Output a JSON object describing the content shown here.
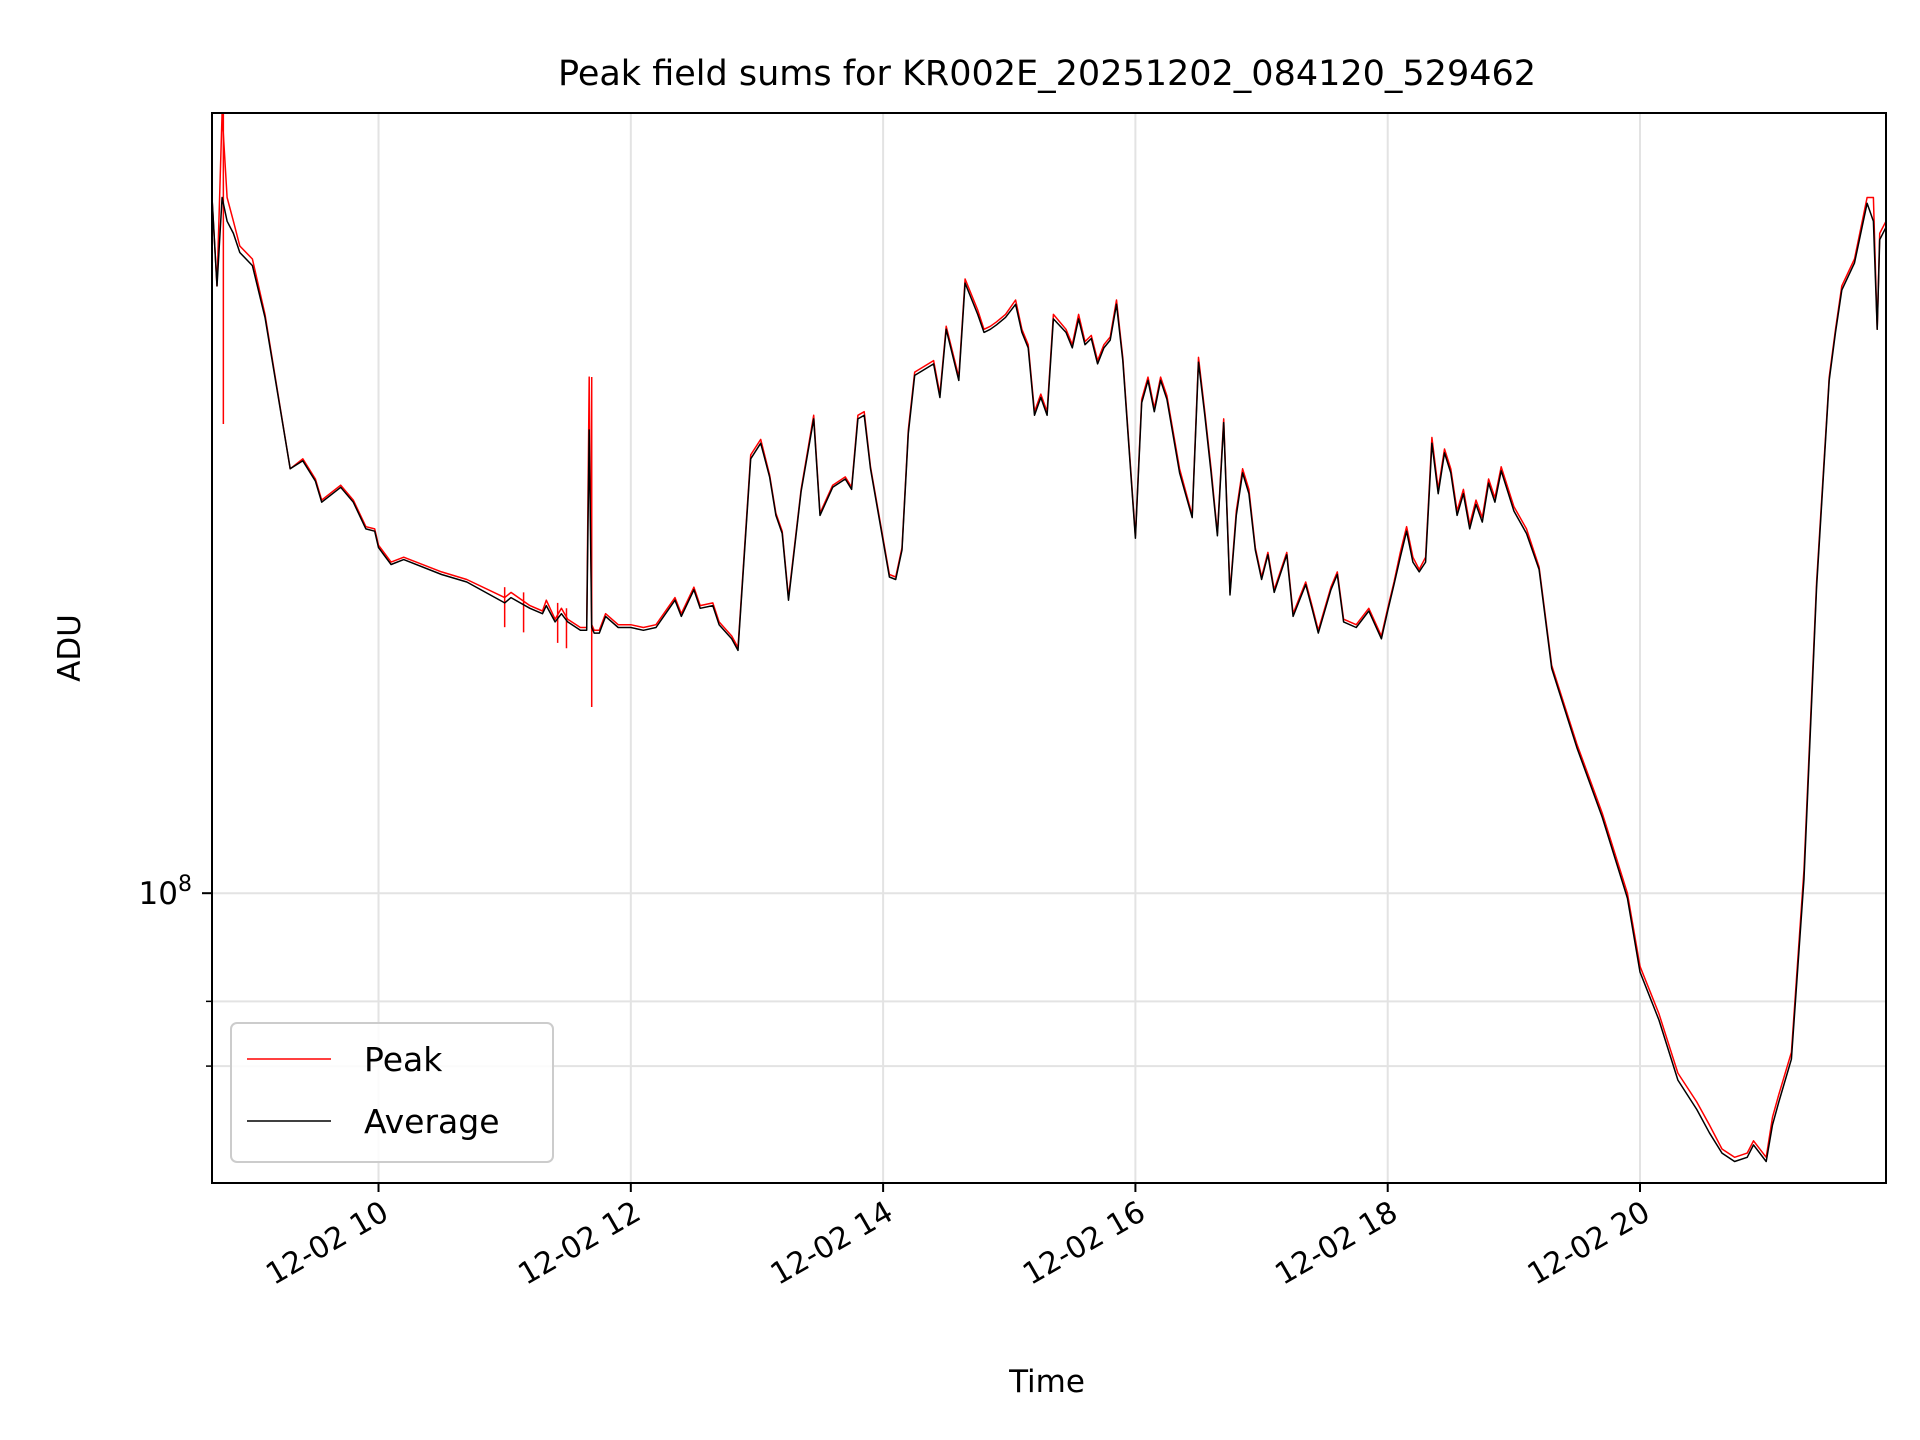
{
  "chart_data": {
    "type": "line",
    "title": "Peak field sums for KR002E_20251202_084120_529462",
    "xlabel": "Time",
    "ylabel": "ADU",
    "yscale": "log",
    "xlim": [
      8.68,
      21.95
    ],
    "ylim": [
      55000000,
      500000000
    ],
    "x_ticks": [
      {
        "value": 10,
        "label": "12-02 10"
      },
      {
        "value": 12,
        "label": "12-02 12"
      },
      {
        "value": 14,
        "label": "12-02 14"
      },
      {
        "value": 16,
        "label": "12-02 16"
      },
      {
        "value": 18,
        "label": "12-02 18"
      },
      {
        "value": 20,
        "label": "12-02 20"
      }
    ],
    "y_major_ticks": [
      {
        "value": 100000000,
        "base": "10",
        "exp": "8"
      }
    ],
    "y_minor_ticks": [
      70000000,
      80000000
    ],
    "grid": true,
    "legend": {
      "position": "lower-left"
    },
    "series": [
      {
        "name": "Peak",
        "color": "#ff0000",
        "x": [
          8.68,
          8.72,
          8.76,
          8.8,
          8.85,
          8.9,
          9.0,
          9.1,
          9.3,
          9.4,
          9.5,
          9.55,
          9.7,
          9.8,
          9.9,
          9.97,
          10.0,
          10.1,
          10.2,
          10.5,
          10.7,
          11.0,
          11.05,
          11.2,
          11.3,
          11.33,
          11.4,
          11.45,
          11.5,
          11.6,
          11.65,
          11.67,
          11.69,
          11.71,
          11.75,
          11.8,
          11.9,
          12.0,
          12.1,
          12.2,
          12.35,
          12.4,
          12.5,
          12.55,
          12.65,
          12.7,
          12.8,
          12.85,
          12.95,
          13.03,
          13.1,
          13.15,
          13.2,
          13.25,
          13.35,
          13.45,
          13.5,
          13.6,
          13.7,
          13.75,
          13.8,
          13.85,
          13.9,
          14.05,
          14.1,
          14.15,
          14.2,
          14.25,
          14.4,
          14.45,
          14.5,
          14.6,
          14.65,
          14.75,
          14.8,
          14.85,
          14.9,
          14.97,
          15.05,
          15.1,
          15.15,
          15.2,
          15.25,
          15.3,
          15.35,
          15.45,
          15.5,
          15.55,
          15.6,
          15.65,
          15.7,
          15.75,
          15.8,
          15.85,
          15.9,
          16.0,
          16.05,
          16.1,
          16.15,
          16.2,
          16.25,
          16.35,
          16.45,
          16.5,
          16.55,
          16.6,
          16.65,
          16.7,
          16.75,
          16.8,
          16.85,
          16.9,
          16.95,
          17.0,
          17.05,
          17.1,
          17.2,
          17.25,
          17.35,
          17.4,
          17.45,
          17.55,
          17.6,
          17.65,
          17.75,
          17.85,
          17.95,
          18.0,
          18.05,
          18.1,
          18.15,
          18.2,
          18.25,
          18.3,
          18.35,
          18.4,
          18.45,
          18.5,
          18.55,
          18.6,
          18.65,
          18.7,
          18.75,
          18.8,
          18.85,
          18.9,
          19.0,
          19.1,
          19.2,
          19.3,
          19.5,
          19.7,
          19.9,
          20.0,
          20.15,
          20.3,
          20.45,
          20.55,
          20.65,
          20.75,
          20.85,
          20.9,
          21.0,
          21.05,
          21.1,
          21.2,
          21.3,
          21.4,
          21.5,
          21.55,
          21.6,
          21.7,
          21.8,
          21.85,
          21.88,
          21.9,
          21.95
        ],
        "y": [
          420000000,
          350000000,
          500000000,
          420000000,
          400000000,
          380000000,
          370000000,
          330000000,
          240000000,
          245000000,
          235000000,
          225000000,
          232000000,
          225000000,
          213000000,
          212000000,
          205000000,
          198000000,
          200000000,
          194000000,
          191000000,
          184000000,
          186000000,
          181000000,
          179000000,
          183000000,
          176000000,
          180000000,
          176000000,
          173000000,
          173000000,
          290000000,
          174000000,
          172000000,
          172000000,
          178000000,
          174000000,
          174000000,
          173000000,
          174000000,
          184000000,
          178000000,
          188000000,
          181000000,
          182000000,
          175000000,
          170000000,
          166000000,
          247000000,
          255000000,
          237000000,
          219000000,
          211000000,
          184000000,
          230000000,
          268000000,
          219000000,
          232000000,
          236000000,
          231000000,
          268000000,
          270000000,
          241000000,
          193000000,
          192000000,
          204000000,
          260000000,
          293000000,
          300000000,
          280000000,
          322000000,
          290000000,
          355000000,
          333000000,
          320000000,
          322000000,
          325000000,
          330000000,
          340000000,
          320000000,
          310000000,
          270000000,
          280000000,
          270000000,
          330000000,
          320000000,
          310000000,
          330000000,
          312000000,
          316000000,
          300000000,
          310000000,
          315000000,
          340000000,
          302000000,
          209000000,
          277000000,
          290000000,
          272000000,
          290000000,
          279000000,
          240000000,
          218000000,
          302000000,
          270000000,
          240000000,
          210000000,
          266000000,
          186000000,
          220000000,
          240000000,
          230000000,
          204000000,
          192000000,
          202000000,
          187000000,
          202000000,
          178000000,
          190000000,
          181000000,
          172000000,
          188000000,
          194000000,
          176000000,
          174000000,
          180000000,
          170000000,
          180000000,
          190000000,
          202000000,
          213000000,
          200000000,
          195000000,
          200000000,
          256000000,
          230000000,
          250000000,
          240000000,
          220000000,
          230000000,
          214000000,
          225000000,
          217000000,
          235000000,
          226000000,
          241000000,
          222000000,
          212000000,
          196000000,
          160000000,
          136000000,
          118000000,
          100000000,
          86000000,
          78000000,
          69000000,
          65000000,
          62000000,
          59000000,
          58000000,
          58500000,
          60000000,
          58000000,
          63000000,
          66000000,
          72000000,
          105000000,
          190000000,
          290000000,
          320000000,
          350000000,
          370000000,
          420000000,
          420000000,
          320000000,
          390000000,
          400000000
        ],
        "spikes": [
          {
            "x": 8.77,
            "y": 520000000
          },
          {
            "x": 11.69,
            "y": 290000000
          },
          {
            "x": 11.0,
            "y": 188000000
          },
          {
            "x": 11.15,
            "y": 186000000
          },
          {
            "x": 11.42,
            "y": 182000000
          },
          {
            "x": 11.49,
            "y": 180000000
          }
        ]
      },
      {
        "name": "Average",
        "color": "#000000",
        "x": [
          8.68,
          8.72,
          8.76,
          8.8,
          8.85,
          8.9,
          9.0,
          9.1,
          9.3,
          9.4,
          9.5,
          9.55,
          9.7,
          9.8,
          9.9,
          9.97,
          10.0,
          10.1,
          10.2,
          10.5,
          10.7,
          11.0,
          11.05,
          11.2,
          11.3,
          11.33,
          11.4,
          11.45,
          11.5,
          11.6,
          11.65,
          11.67,
          11.69,
          11.71,
          11.75,
          11.8,
          11.9,
          12.0,
          12.1,
          12.2,
          12.35,
          12.4,
          12.5,
          12.55,
          12.65,
          12.7,
          12.8,
          12.85,
          12.95,
          13.03,
          13.1,
          13.15,
          13.2,
          13.25,
          13.35,
          13.45,
          13.5,
          13.6,
          13.7,
          13.75,
          13.8,
          13.85,
          13.9,
          14.05,
          14.1,
          14.15,
          14.2,
          14.25,
          14.4,
          14.45,
          14.5,
          14.6,
          14.65,
          14.75,
          14.8,
          14.85,
          14.9,
          14.97,
          15.05,
          15.1,
          15.15,
          15.2,
          15.25,
          15.3,
          15.35,
          15.45,
          15.5,
          15.55,
          15.6,
          15.65,
          15.7,
          15.75,
          15.8,
          15.85,
          15.9,
          16.0,
          16.05,
          16.1,
          16.15,
          16.2,
          16.25,
          16.35,
          16.45,
          16.5,
          16.55,
          16.6,
          16.65,
          16.7,
          16.75,
          16.8,
          16.85,
          16.9,
          16.95,
          17.0,
          17.05,
          17.1,
          17.2,
          17.25,
          17.35,
          17.4,
          17.45,
          17.55,
          17.6,
          17.65,
          17.75,
          17.85,
          17.95,
          18.0,
          18.05,
          18.1,
          18.15,
          18.2,
          18.25,
          18.3,
          18.35,
          18.4,
          18.45,
          18.5,
          18.55,
          18.6,
          18.65,
          18.7,
          18.75,
          18.8,
          18.85,
          18.9,
          19.0,
          19.1,
          19.2,
          19.3,
          19.5,
          19.7,
          19.9,
          20.0,
          20.15,
          20.3,
          20.45,
          20.55,
          20.65,
          20.75,
          20.85,
          20.9,
          21.0,
          21.05,
          21.1,
          21.2,
          21.3,
          21.4,
          21.5,
          21.55,
          21.6,
          21.7,
          21.8,
          21.85,
          21.88,
          21.9,
          21.95
        ],
        "y": [
          420000000,
          350000000,
          420000000,
          400000000,
          390000000,
          375000000,
          365000000,
          328000000,
          240000000,
          244000000,
          234000000,
          224000000,
          231000000,
          224000000,
          212000000,
          211000000,
          204000000,
          197000000,
          199000000,
          193000000,
          190000000,
          182000000,
          184000000,
          180000000,
          178000000,
          181000000,
          175000000,
          178000000,
          175000000,
          172000000,
          172000000,
          260000000,
          173000000,
          171000000,
          171000000,
          177000000,
          173000000,
          173000000,
          172000000,
          173000000,
          183000000,
          177000000,
          187000000,
          180000000,
          181000000,
          174000000,
          169000000,
          165000000,
          245000000,
          253000000,
          236000000,
          218000000,
          210000000,
          183000000,
          229000000,
          266000000,
          218000000,
          231000000,
          235000000,
          230000000,
          266000000,
          268000000,
          240000000,
          192000000,
          191000000,
          203000000,
          258000000,
          291000000,
          298000000,
          278000000,
          320000000,
          288000000,
          352000000,
          330000000,
          318000000,
          320000000,
          323000000,
          328000000,
          337000000,
          318000000,
          308000000,
          268000000,
          278000000,
          268000000,
          327000000,
          318000000,
          308000000,
          327000000,
          310000000,
          314000000,
          298000000,
          308000000,
          313000000,
          337000000,
          300000000,
          208000000,
          275000000,
          288000000,
          270000000,
          288000000,
          277000000,
          238000000,
          217000000,
          299000000,
          268000000,
          238000000,
          209000000,
          264000000,
          185000000,
          218000000,
          238000000,
          228000000,
          203000000,
          191000000,
          201000000,
          186000000,
          201000000,
          177000000,
          189000000,
          180000000,
          171000000,
          187000000,
          193000000,
          175000000,
          173000000,
          179000000,
          169000000,
          179000000,
          189000000,
          200000000,
          211000000,
          198000000,
          194000000,
          198000000,
          253000000,
          228000000,
          248000000,
          238000000,
          218000000,
          228000000,
          212000000,
          223000000,
          215000000,
          233000000,
          224000000,
          239000000,
          220000000,
          210000000,
          195000000,
          159000000,
          135000000,
          117000000,
          99000000,
          85000000,
          77000000,
          68000000,
          64000000,
          61000000,
          58500000,
          57500000,
          58000000,
          59500000,
          57500000,
          62000000,
          65000000,
          71000000,
          103000000,
          188000000,
          288000000,
          318000000,
          347000000,
          367000000,
          415000000,
          400000000,
          320000000,
          385000000,
          395000000
        ]
      }
    ]
  }
}
